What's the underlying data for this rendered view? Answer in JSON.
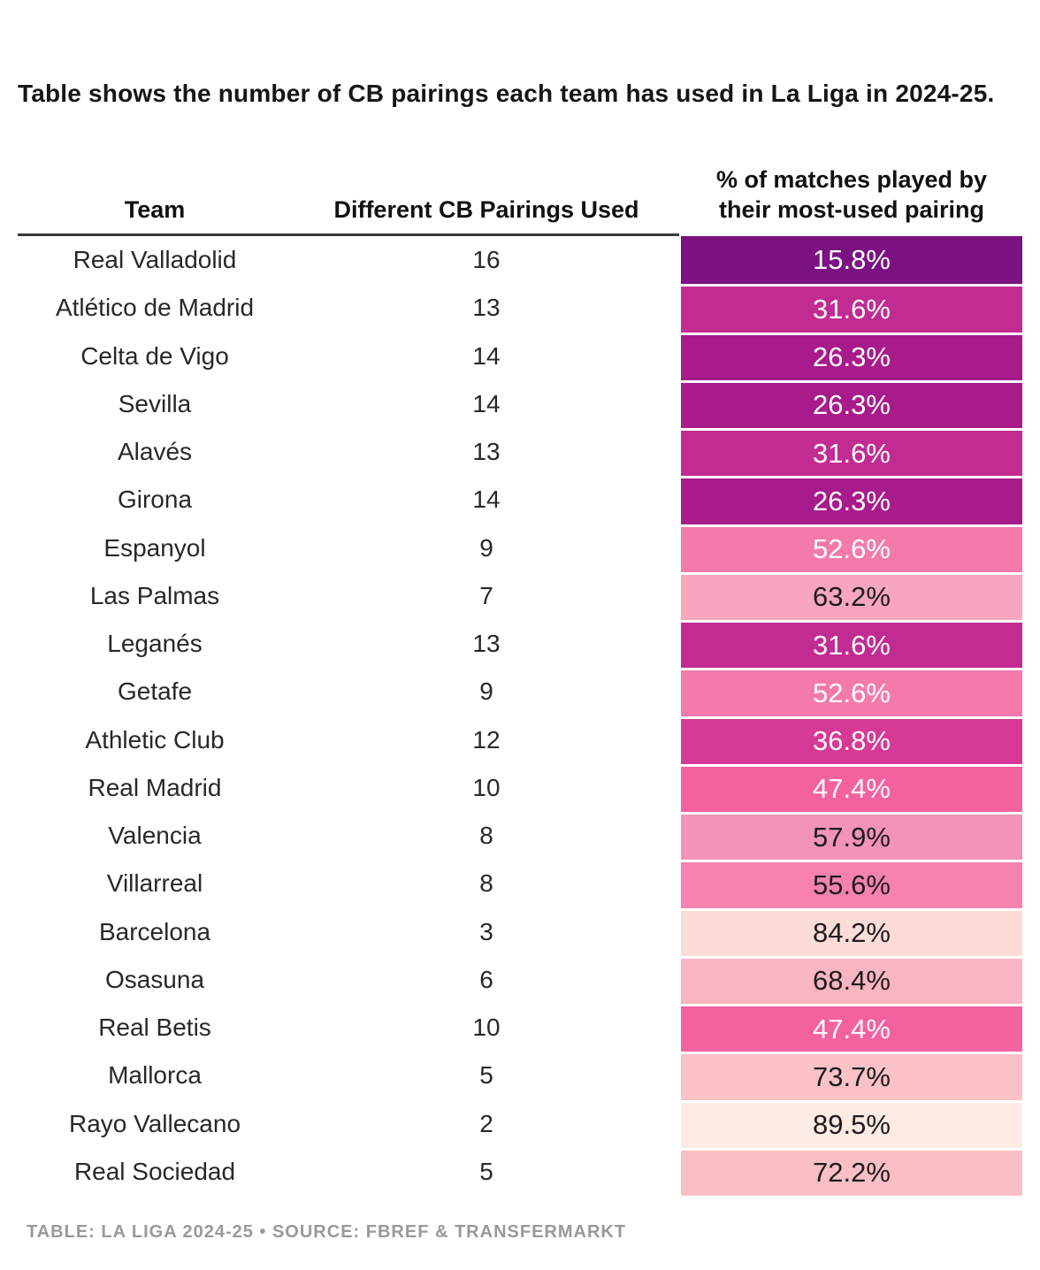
{
  "title": "Table shows the number of CB pairings each team has used in La Liga in 2024-25.",
  "header": {
    "team": "Team",
    "count": "Different CB Pairings Used",
    "pct_line1": "% of matches played by",
    "pct_line2": "their most-used pairing"
  },
  "footer": "Table: La Liga 2024-25 • Source: FBref & Transfermarkt",
  "chart_data": {
    "type": "table",
    "title": "Table shows the number of CB pairings each team has used in La Liga in 2024-25.",
    "columns": [
      "Team",
      "Different CB Pairings Used",
      "% of matches played by their most-used pairing"
    ],
    "legend_position": "none",
    "colormap": "sequential purple (low %) to pale pink (high %)",
    "rows": [
      {
        "team": "Real Valladolid",
        "count": 16,
        "pct": "15.8%",
        "bg": "#7b1281",
        "fg": "#ffffff"
      },
      {
        "team": "Atlético de Madrid",
        "count": 13,
        "pct": "31.6%",
        "bg": "#c22b91",
        "fg": "#ffffff"
      },
      {
        "team": "Celta de Vigo",
        "count": 14,
        "pct": "26.3%",
        "bg": "#a81b8b",
        "fg": "#ffffff"
      },
      {
        "team": "Sevilla",
        "count": 14,
        "pct": "26.3%",
        "bg": "#a81b8b",
        "fg": "#ffffff"
      },
      {
        "team": "Alavés",
        "count": 13,
        "pct": "31.6%",
        "bg": "#c22b91",
        "fg": "#ffffff"
      },
      {
        "team": "Girona",
        "count": 14,
        "pct": "26.3%",
        "bg": "#a81b8b",
        "fg": "#ffffff"
      },
      {
        "team": "Espanyol",
        "count": 9,
        "pct": "52.6%",
        "bg": "#f47aab",
        "fg": "#ffffff"
      },
      {
        "team": "Las Palmas",
        "count": 7,
        "pct": "63.2%",
        "bg": "#f7a6bd",
        "fg": "#1c1c1c"
      },
      {
        "team": "Leganés",
        "count": 13,
        "pct": "31.6%",
        "bg": "#c22b91",
        "fg": "#ffffff"
      },
      {
        "team": "Getafe",
        "count": 9,
        "pct": "52.6%",
        "bg": "#f47aab",
        "fg": "#ffffff"
      },
      {
        "team": "Athletic Club",
        "count": 12,
        "pct": "36.8%",
        "bg": "#d63a96",
        "fg": "#ffffff"
      },
      {
        "team": "Real Madrid",
        "count": 10,
        "pct": "47.4%",
        "bg": "#f4619f",
        "fg": "#ffffff"
      },
      {
        "team": "Valencia",
        "count": 8,
        "pct": "57.9%",
        "bg": "#f293b7",
        "fg": "#1c1c1c"
      },
      {
        "team": "Villarreal",
        "count": 8,
        "pct": "55.6%",
        "bg": "#f782ae",
        "fg": "#1c1c1c"
      },
      {
        "team": "Barcelona",
        "count": 3,
        "pct": "84.2%",
        "bg": "#fcdcd7",
        "fg": "#1c1c1c"
      },
      {
        "team": "Osasuna",
        "count": 6,
        "pct": "68.4%",
        "bg": "#f9b5c1",
        "fg": "#1c1c1c"
      },
      {
        "team": "Real Betis",
        "count": 10,
        "pct": "47.4%",
        "bg": "#f4619f",
        "fg": "#ffffff"
      },
      {
        "team": "Mallorca",
        "count": 5,
        "pct": "73.7%",
        "bg": "#fac2c6",
        "fg": "#1c1c1c"
      },
      {
        "team": "Rayo Vallecano",
        "count": 2,
        "pct": "89.5%",
        "bg": "#fdebe4",
        "fg": "#1c1c1c"
      },
      {
        "team": "Real Sociedad",
        "count": 5,
        "pct": "72.2%",
        "bg": "#fabfc5",
        "fg": "#1c1c1c"
      }
    ]
  }
}
